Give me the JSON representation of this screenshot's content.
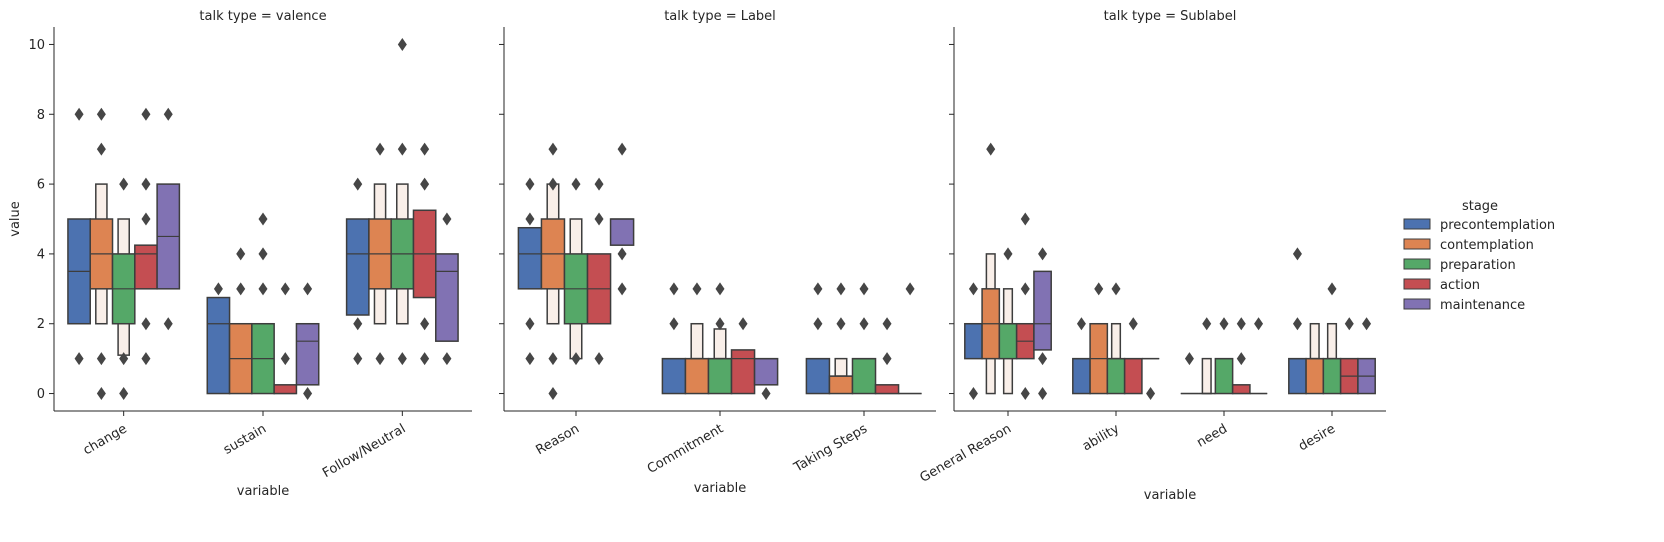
{
  "chart_data": {
    "type": "boxen",
    "ylabel": "value",
    "xlabel": "variable",
    "ylim": [
      -0.5,
      10.5
    ],
    "yticks": [
      "0",
      "2",
      "4",
      "6",
      "8",
      "10"
    ],
    "legend": {
      "title": "stage",
      "placement": "right",
      "entries": [
        "precontemplation",
        "contemplation",
        "preparation",
        "action",
        "maintenance"
      ]
    },
    "colors": {
      "precontemplation": "#4c72b0",
      "contemplation": "#dd8452",
      "preparation": "#55a868",
      "action": "#c44e52",
      "maintenance": "#8172b3",
      "light": "#f9efe9",
      "outline": "#3d3d3d"
    },
    "facets": [
      {
        "title": "talk type = valence",
        "categories": [
          "change",
          "sustain",
          "Follow/Neutral"
        ],
        "groups": [
          [
            {
              "stage": "precontemplation",
              "q1": 2,
              "median": 3.5,
              "q3": 5,
              "outliers": [
                1,
                8
              ]
            },
            {
              "stage": "contemplation",
              "q1": 3,
              "median": 4,
              "q3": 5,
              "outer": [
                2,
                6
              ],
              "outer_fill": "light",
              "outliers": [
                0,
                1,
                7,
                8
              ]
            },
            {
              "stage": "preparation",
              "q1": 2,
              "median": 3,
              "q3": 4,
              "outer": [
                1.1,
                5
              ],
              "outer_fill": "light",
              "outliers": [
                0,
                1,
                6
              ]
            },
            {
              "stage": "action",
              "q1": 3,
              "median": 4,
              "q3": 4.25,
              "outliers": [
                1,
                2,
                5,
                6,
                8
              ]
            },
            {
              "stage": "maintenance",
              "q1": 3,
              "median": 4.5,
              "q3": 6,
              "outliers": [
                2,
                8
              ]
            }
          ],
          [
            {
              "stage": "precontemplation",
              "q1": 0,
              "median": 2,
              "q3": 2.75,
              "outliers": [
                3
              ]
            },
            {
              "stage": "contemplation",
              "q1": 0,
              "median": 1,
              "q3": 2,
              "outliers": [
                3,
                4
              ]
            },
            {
              "stage": "preparation",
              "q1": 0,
              "median": 1,
              "q3": 2,
              "outliers": [
                3,
                4,
                5
              ]
            },
            {
              "stage": "action",
              "q1": 0,
              "median": 0,
              "q3": 0.25,
              "outliers": [
                1,
                3
              ]
            },
            {
              "stage": "maintenance",
              "q1": 0.25,
              "median": 1.5,
              "q3": 2,
              "outliers": [
                0,
                3
              ]
            }
          ],
          [
            {
              "stage": "precontemplation",
              "q1": 2.25,
              "median": 4,
              "q3": 5,
              "outliers": [
                1,
                2,
                6
              ]
            },
            {
              "stage": "contemplation",
              "q1": 3,
              "median": 4,
              "q3": 5,
              "outer": [
                2,
                6
              ],
              "outer_fill": "light",
              "outliers": [
                1,
                7
              ]
            },
            {
              "stage": "preparation",
              "q1": 3,
              "median": 4,
              "q3": 5,
              "outer": [
                2,
                6
              ],
              "outer_fill": "light",
              "outliers": [
                1,
                7,
                10
              ]
            },
            {
              "stage": "action",
              "q1": 2.75,
              "median": 4,
              "q3": 5.25,
              "outliers": [
                1,
                2,
                6,
                7
              ]
            },
            {
              "stage": "maintenance",
              "q1": 1.5,
              "median": 3.5,
              "q3": 4,
              "outliers": [
                1,
                5
              ]
            }
          ]
        ]
      },
      {
        "title": "talk type = Label",
        "categories": [
          "Reason",
          "Commitment",
          "Taking Steps"
        ],
        "groups": [
          [
            {
              "stage": "precontemplation",
              "q1": 3,
              "median": 4,
              "q3": 4.75,
              "outliers": [
                1,
                2,
                5,
                6
              ]
            },
            {
              "stage": "contemplation",
              "q1": 3,
              "median": 4,
              "q3": 5,
              "outer": [
                2,
                6
              ],
              "outer_fill": "light",
              "outliers": [
                0,
                1,
                6,
                7
              ]
            },
            {
              "stage": "preparation",
              "q1": 2,
              "median": 3,
              "q3": 4,
              "outer": [
                1,
                5
              ],
              "outer_fill": "light",
              "outliers": [
                1,
                6
              ]
            },
            {
              "stage": "action",
              "q1": 2,
              "median": 3,
              "q3": 4,
              "outliers": [
                1,
                5,
                6
              ]
            },
            {
              "stage": "maintenance",
              "q1": 4.25,
              "median": 5,
              "q3": 5,
              "outliers": [
                3,
                4,
                7
              ]
            }
          ],
          [
            {
              "stage": "precontemplation",
              "q1": 0,
              "median": 1,
              "q3": 1,
              "outliers": [
                2,
                3
              ]
            },
            {
              "stage": "contemplation",
              "q1": 0,
              "median": 1,
              "q3": 1,
              "outer": [
                1,
                2
              ],
              "outer_fill": "light",
              "outliers": [
                3
              ]
            },
            {
              "stage": "preparation",
              "q1": 0,
              "median": 1,
              "q3": 1,
              "outer": [
                1,
                1.85
              ],
              "outer_fill": "light",
              "outliers": [
                2,
                3
              ]
            },
            {
              "stage": "action",
              "q1": 0,
              "median": 1,
              "q3": 1.25,
              "outliers": [
                2
              ]
            },
            {
              "stage": "maintenance",
              "q1": 0.25,
              "median": 1,
              "q3": 1,
              "outliers": [
                0
              ]
            }
          ],
          [
            {
              "stage": "precontemplation",
              "q1": 0,
              "median": 1,
              "q3": 1,
              "outliers": [
                2,
                3
              ]
            },
            {
              "stage": "contemplation",
              "q1": 0,
              "median": 0.5,
              "q3": 0.5,
              "outer": [
                0.5,
                1
              ],
              "outer_fill": "light",
              "outliers": [
                2,
                3
              ]
            },
            {
              "stage": "preparation",
              "q1": 0,
              "median": 1,
              "q3": 1,
              "outliers": [
                2,
                3
              ]
            },
            {
              "stage": "action",
              "q1": 0,
              "median": 0,
              "q3": 0.25,
              "outliers": [
                1,
                2
              ]
            },
            {
              "stage": "maintenance",
              "q1": 0,
              "median": 0,
              "q3": 0,
              "outliers": [
                3
              ]
            }
          ]
        ]
      },
      {
        "title": "talk type = Sublabel",
        "categories": [
          "General Reason",
          "ability",
          "need",
          "desire"
        ],
        "groups": [
          [
            {
              "stage": "precontemplation",
              "q1": 1,
              "median": 2,
              "q3": 2,
              "outliers": [
                0,
                3
              ]
            },
            {
              "stage": "contemplation",
              "q1": 1,
              "median": 2,
              "q3": 3,
              "outer": [
                0,
                4
              ],
              "outer_fill": "light",
              "outliers": [
                7
              ]
            },
            {
              "stage": "preparation",
              "q1": 1,
              "median": 2,
              "q3": 2,
              "outer": [
                0,
                3
              ],
              "outer_fill": "light",
              "outliers": [
                4
              ]
            },
            {
              "stage": "action",
              "q1": 1,
              "median": 1.5,
              "q3": 2,
              "outliers": [
                0,
                3,
                5
              ]
            },
            {
              "stage": "maintenance",
              "q1": 1.25,
              "median": 2,
              "q3": 3.5,
              "outliers": [
                0,
                1,
                4
              ]
            }
          ],
          [
            {
              "stage": "precontemplation",
              "q1": 0,
              "median": 1,
              "q3": 1,
              "outliers": [
                2
              ]
            },
            {
              "stage": "contemplation",
              "q1": 0,
              "median": 1,
              "q3": 2,
              "outliers": [
                3
              ]
            },
            {
              "stage": "preparation",
              "q1": 0,
              "median": 1,
              "q3": 1,
              "outer": [
                1,
                2
              ],
              "outer_fill": "light",
              "outliers": [
                3
              ]
            },
            {
              "stage": "action",
              "q1": 0,
              "median": 1,
              "q3": 1,
              "outliers": [
                2
              ]
            },
            {
              "stage": "maintenance",
              "q1": 1,
              "median": 1,
              "q3": 1,
              "outliers": [
                0
              ]
            }
          ],
          [
            {
              "stage": "precontemplation",
              "q1": 0,
              "median": 0,
              "q3": 0,
              "outliers": [
                1
              ]
            },
            {
              "stage": "contemplation",
              "q1": 0,
              "median": 0,
              "q3": 0,
              "outer": [
                0,
                1
              ],
              "outer_fill": "light",
              "outliers": [
                2
              ]
            },
            {
              "stage": "preparation",
              "q1": 0,
              "median": 1,
              "q3": 1,
              "outliers": [
                2
              ]
            },
            {
              "stage": "action",
              "q1": 0,
              "median": 0,
              "q3": 0.25,
              "outliers": [
                1,
                2
              ]
            },
            {
              "stage": "maintenance",
              "q1": 0,
              "median": 0,
              "q3": 0,
              "outliers": [
                2
              ]
            }
          ],
          [
            {
              "stage": "precontemplation",
              "q1": 0,
              "median": 1,
              "q3": 1,
              "outliers": [
                2,
                4
              ]
            },
            {
              "stage": "contemplation",
              "q1": 0,
              "median": 1,
              "q3": 1,
              "outer": [
                1,
                2
              ],
              "outer_fill": "light",
              "outliers": []
            },
            {
              "stage": "preparation",
              "q1": 0,
              "median": 1,
              "q3": 1,
              "outer": [
                1,
                2
              ],
              "outer_fill": "light",
              "outliers": [
                3
              ]
            },
            {
              "stage": "action",
              "q1": 0,
              "median": 0.5,
              "q3": 1,
              "outliers": [
                2
              ]
            },
            {
              "stage": "maintenance",
              "q1": 0,
              "median": 0.5,
              "q3": 1,
              "outliers": [
                2
              ]
            }
          ]
        ]
      }
    ]
  }
}
